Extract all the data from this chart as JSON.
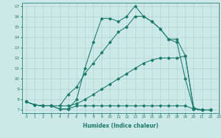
{
  "xlabel": "Humidex (Indice chaleur)",
  "xlim": [
    -0.5,
    23
  ],
  "ylim": [
    6.7,
    17.3
  ],
  "yticks": [
    7,
    8,
    9,
    10,
    11,
    12,
    13,
    14,
    15,
    16,
    17
  ],
  "xticks": [
    0,
    1,
    2,
    3,
    4,
    5,
    6,
    7,
    8,
    9,
    10,
    11,
    12,
    13,
    14,
    15,
    16,
    17,
    18,
    19,
    20,
    21,
    22,
    23
  ],
  "bg_color": "#cce8e8",
  "line_color": "#1a7a6e",
  "grid_color": "#b0d0d0",
  "lines": [
    {
      "x": [
        0,
        1,
        2,
        3,
        4,
        5,
        6,
        7,
        8,
        9,
        10,
        11,
        12,
        13,
        14,
        15,
        16,
        17,
        18,
        19,
        20,
        21,
        22
      ],
      "y": [
        7.8,
        7.5,
        7.4,
        7.4,
        7.1,
        7.1,
        7.4,
        7.4,
        7.4,
        7.4,
        7.4,
        7.4,
        7.4,
        7.4,
        7.4,
        7.4,
        7.4,
        7.4,
        7.4,
        7.4,
        7.1,
        7.0,
        7.0
      ]
    },
    {
      "x": [
        0,
        1,
        2,
        3,
        4,
        5,
        6,
        7,
        8,
        9,
        10,
        11,
        12,
        13,
        14,
        15,
        16,
        17,
        18,
        19,
        20,
        21,
        22
      ],
      "y": [
        7.8,
        7.5,
        7.4,
        7.4,
        7.4,
        7.4,
        7.6,
        8.0,
        8.5,
        9.0,
        9.5,
        10.0,
        10.5,
        11.0,
        11.5,
        11.8,
        12.0,
        12.0,
        12.0,
        12.2,
        7.2,
        7.0,
        7.0
      ]
    },
    {
      "x": [
        0,
        1,
        2,
        3,
        4,
        5,
        6,
        7,
        8,
        9,
        10,
        11,
        12,
        13,
        14,
        15,
        16,
        17,
        18,
        19,
        20,
        21,
        22
      ],
      "y": [
        7.8,
        7.5,
        7.4,
        7.4,
        7.4,
        8.5,
        9.2,
        10.5,
        11.5,
        12.5,
        13.5,
        14.5,
        15.0,
        16.0,
        16.0,
        15.5,
        14.8,
        13.8,
        13.5,
        10.0,
        7.1,
        7.0,
        7.0
      ]
    },
    {
      "x": [
        0,
        1,
        2,
        3,
        4,
        5,
        6,
        7,
        8,
        9,
        10,
        11,
        12,
        13,
        14,
        15,
        16,
        17,
        18,
        19,
        20,
        21,
        22
      ],
      "y": [
        7.8,
        7.5,
        7.4,
        7.4,
        7.1,
        7.1,
        8.0,
        11.0,
        13.5,
        15.8,
        15.8,
        15.5,
        16.0,
        17.0,
        16.0,
        15.5,
        14.8,
        13.8,
        13.8,
        12.2,
        7.1,
        7.0,
        7.0
      ]
    }
  ]
}
